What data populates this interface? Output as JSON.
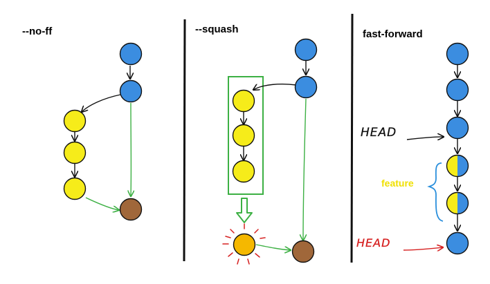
{
  "panels": [
    {
      "title": "--no-ff"
    },
    {
      "title": "--squash"
    },
    {
      "title": "fast-forward"
    }
  ],
  "annotations": {
    "head_upper": "HEAD",
    "head_lower": "HEAD",
    "feature": "feature"
  },
  "colors": {
    "main_commit": "#3b8de0",
    "feature_commit": "#f6ec1a",
    "squash_commit": "#f5b800",
    "merge_commit": "#a0673a",
    "merge_arrow": "#3cb043",
    "squash_box": "#3cb043",
    "head_lower": "#d62020",
    "feature_label": "#f0e000",
    "feature_brace": "#2a8fdc",
    "divider": "#111111"
  }
}
